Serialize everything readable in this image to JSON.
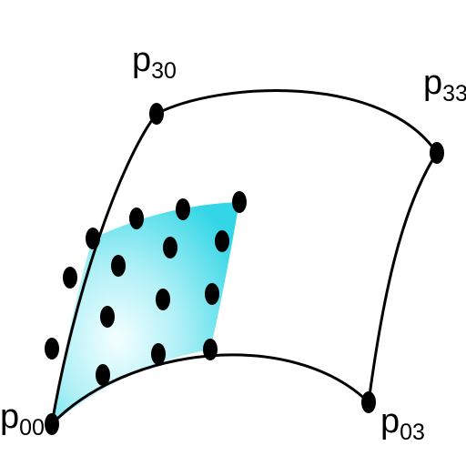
{
  "diagram": {
    "labels": {
      "p00": {
        "main": "p",
        "sub": "00"
      },
      "p03": {
        "main": "p",
        "sub": "03"
      },
      "p30": {
        "main": "p",
        "sub": "30"
      },
      "p33": {
        "main": "p",
        "sub": "33"
      }
    },
    "colors": {
      "patch_fill": "#33d6e6",
      "patch_highlight": "#f4ffff",
      "curve": "#000000",
      "point": "#000000"
    }
  }
}
